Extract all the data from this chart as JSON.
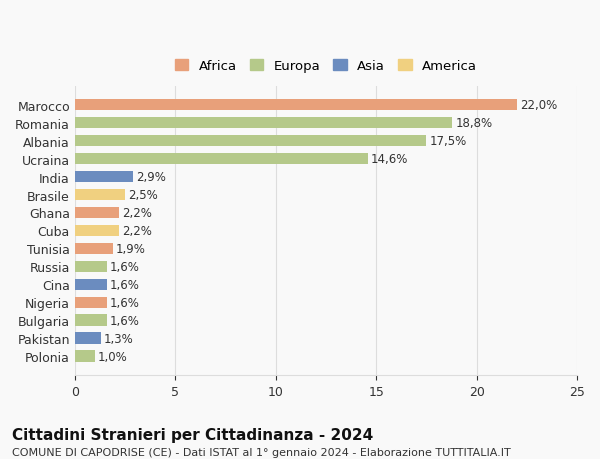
{
  "categories": [
    "Polonia",
    "Pakistan",
    "Bulgaria",
    "Nigeria",
    "Cina",
    "Russia",
    "Tunisia",
    "Cuba",
    "Ghana",
    "Brasile",
    "India",
    "Ucraina",
    "Albania",
    "Romania",
    "Marocco"
  ],
  "values": [
    1.0,
    1.3,
    1.6,
    1.6,
    1.6,
    1.6,
    1.9,
    2.2,
    2.2,
    2.5,
    2.9,
    14.6,
    17.5,
    18.8,
    22.0
  ],
  "colors": [
    "#b5c98a",
    "#6b8cbf",
    "#b5c98a",
    "#e8a07a",
    "#6b8cbf",
    "#b5c98a",
    "#e8a07a",
    "#f0d080",
    "#e8a07a",
    "#f0d080",
    "#6b8cbf",
    "#b5c98a",
    "#b5c98a",
    "#b5c98a",
    "#e8a07a"
  ],
  "labels": [
    "1,0%",
    "1,3%",
    "1,6%",
    "1,6%",
    "1,6%",
    "1,6%",
    "1,9%",
    "2,2%",
    "2,2%",
    "2,5%",
    "2,9%",
    "14,6%",
    "17,5%",
    "18,8%",
    "22,0%"
  ],
  "legend_labels": [
    "Africa",
    "Europa",
    "Asia",
    "America"
  ],
  "legend_colors": [
    "#e8a07a",
    "#b5c98a",
    "#6b8cbf",
    "#f0d080"
  ],
  "title": "Cittadini Stranieri per Cittadinanza - 2024",
  "subtitle": "COMUNE DI CAPODRISE (CE) - Dati ISTAT al 1° gennaio 2024 - Elaborazione TUTTITALIA.IT",
  "xlim": [
    0,
    25
  ],
  "xticks": [
    0,
    5,
    10,
    15,
    20,
    25
  ],
  "background_color": "#f9f9f9",
  "grid_color": "#dddddd",
  "bar_height": 0.65,
  "title_fontsize": 11,
  "subtitle_fontsize": 8,
  "label_fontsize": 8.5,
  "tick_fontsize": 9
}
